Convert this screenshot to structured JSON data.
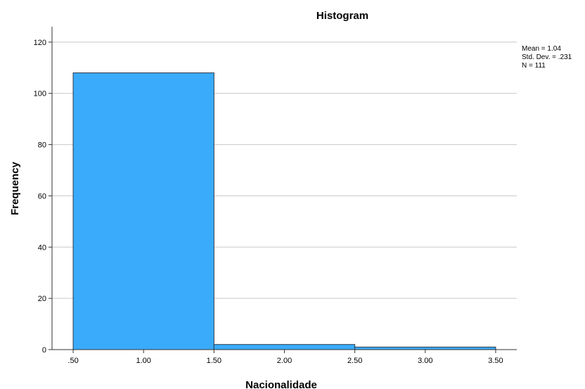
{
  "chart_data": {
    "type": "bar",
    "title": "Histogram",
    "xlabel": "Nacionalidade",
    "ylabel": "Frequency",
    "bins": [
      {
        "from": 0.5,
        "to": 1.5,
        "count": 108
      },
      {
        "from": 1.5,
        "to": 2.5,
        "count": 2
      },
      {
        "from": 2.5,
        "to": 3.5,
        "count": 1
      }
    ],
    "xlim": [
      0.35,
      3.65
    ],
    "ylim": [
      0,
      126
    ],
    "x_ticks": [
      0.5,
      1.0,
      1.5,
      2.0,
      2.5,
      3.0,
      3.5
    ],
    "x_tick_labels": [
      ".50",
      "1.00",
      "1.50",
      "2.00",
      "2.50",
      "3.00",
      "3.50"
    ],
    "y_ticks": [
      0,
      20,
      40,
      60,
      80,
      100,
      120
    ],
    "y_tick_labels": [
      "0",
      "20",
      "40",
      "60",
      "80",
      "100",
      "120"
    ],
    "grid": true,
    "legend": "none",
    "stats_text": [
      "Mean = 1.04",
      "Std. Dev. = .231",
      "N = 111"
    ],
    "colors": {
      "bar_fill": "#3aabfb",
      "bar_stroke": "#2b3a4a",
      "grid": "#c8c8c8",
      "axis": "#333333"
    }
  }
}
